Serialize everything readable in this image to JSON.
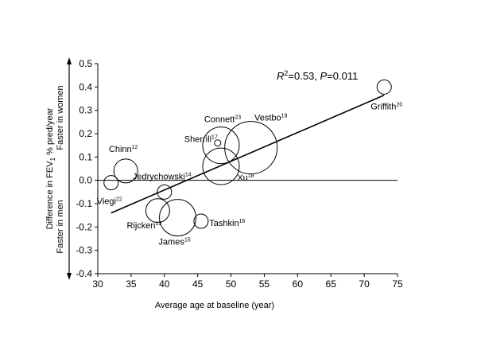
{
  "chart_data": {
    "type": "scatter",
    "title": "",
    "xlabel": "Average age at baseline (year)",
    "ylabel_main": "Difference in FEV",
    "ylabel_sub": "1",
    "ylabel_rest": " % pred/year",
    "ylabel_top": "Faster in women",
    "ylabel_bottom": "Faster in men",
    "xlim": [
      30,
      75
    ],
    "ylim": [
      -0.4,
      0.5
    ],
    "x_ticks": [
      "30",
      "35",
      "40",
      "45",
      "50",
      "55",
      "60",
      "65",
      "70",
      "75"
    ],
    "y_ticks": [
      "-0.4",
      "-0.3",
      "-0.2",
      "-0.1",
      "0.0",
      "0.1",
      "0.2",
      "0.3",
      "0.4",
      "0.5"
    ],
    "annotation": {
      "r_base": "R",
      "r_exp": "2",
      "r_value": "=0.53, ",
      "p_letter": "P",
      "p_value": "=0.011"
    },
    "regression_line": {
      "x": [
        32,
        73
      ],
      "y": [
        -0.14,
        0.365
      ]
    },
    "points": [
      {
        "name": "Viegi",
        "ref": "22",
        "x": 32.0,
        "y": -0.01,
        "size": "small"
      },
      {
        "name": "Chinn",
        "ref": "12",
        "x": 34.2,
        "y": 0.04,
        "size": "medium"
      },
      {
        "name": "Jedrychowski",
        "ref": "14",
        "x": 40.0,
        "y": -0.05,
        "size": "small"
      },
      {
        "name": "Rijcken",
        "ref": "13",
        "x": 39.0,
        "y": -0.13,
        "size": "medium"
      },
      {
        "name": "James",
        "ref": "15",
        "x": 42.0,
        "y": -0.16,
        "size": "large"
      },
      {
        "name": "Tashkin",
        "ref": "16",
        "x": 45.5,
        "y": -0.175,
        "size": "small"
      },
      {
        "name": "Connett",
        "ref": "23",
        "x": 48.5,
        "y": 0.15,
        "size": "large"
      },
      {
        "name": "Sherrill",
        "ref": "17",
        "x": 48.0,
        "y": 0.16,
        "size": "tiny"
      },
      {
        "name": "Xu",
        "ref": "18",
        "x": 48.5,
        "y": 0.06,
        "size": "large"
      },
      {
        "name": "Vestbo",
        "ref": "19",
        "x": 53.0,
        "y": 0.14,
        "size": "xlarge"
      },
      {
        "name": "Griffith",
        "ref": "20",
        "x": 73.0,
        "y": 0.4,
        "size": "small"
      }
    ]
  }
}
